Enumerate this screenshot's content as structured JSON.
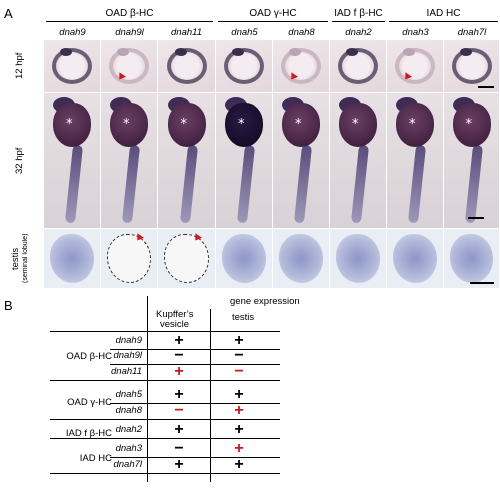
{
  "panel_a": {
    "letter": "A",
    "groups": [
      {
        "label": "OAD β-HC"
      },
      {
        "label": "OAD γ-HC"
      },
      {
        "label": "IAD f β-HC"
      },
      {
        "label": "IAD HC"
      }
    ],
    "genes": [
      "dnah9",
      "dnah9l",
      "dnah11",
      "dnah5",
      "dnah8",
      "dnah2",
      "dnah3",
      "dnah7l"
    ],
    "rows": [
      {
        "label": "12 hpf"
      },
      {
        "label": "32 hpf"
      },
      {
        "label": "testis",
        "sublabel": "(seminal lobule)"
      }
    ],
    "star": "*",
    "faint_12hpf": [
      false,
      true,
      false,
      false,
      true,
      false,
      true,
      false
    ],
    "dark_yolk_32hpf": [
      false,
      false,
      false,
      true,
      false,
      false,
      false,
      false
    ],
    "absent_testis": [
      false,
      true,
      true,
      false,
      false,
      false,
      false,
      false
    ],
    "colors": {
      "arrowhead": "#d6141c",
      "stain": "#3c2f4c"
    }
  },
  "panel_b": {
    "letter": "B",
    "header": {
      "title": "gene expression",
      "col1_line1": "Kupffer’s",
      "col1_line2": "vesicle",
      "col2": "testis"
    },
    "groups": [
      {
        "label": "OAD β-HC"
      },
      {
        "label": "OAD γ-HC"
      },
      {
        "label": "IAD f β-HC"
      },
      {
        "label": "IAD HC"
      }
    ],
    "rows": [
      {
        "gene": "dnah9",
        "kv": "+",
        "kv_red": false,
        "testis": "+",
        "testis_red": false
      },
      {
        "gene": "dnah9l",
        "kv": "−",
        "kv_red": false,
        "testis": "−",
        "testis_red": false
      },
      {
        "gene": "dnah11",
        "kv": "+",
        "kv_red": true,
        "testis": "−",
        "testis_red": true
      },
      {
        "gene": "dnah5",
        "kv": "+",
        "kv_red": false,
        "testis": "+",
        "testis_red": false
      },
      {
        "gene": "dnah8",
        "kv": "−",
        "kv_red": true,
        "testis": "+",
        "testis_red": true
      },
      {
        "gene": "dnah2",
        "kv": "+",
        "kv_red": false,
        "testis": "+",
        "testis_red": false
      },
      {
        "gene": "dnah3",
        "kv": "−",
        "kv_red": false,
        "testis": "+",
        "testis_red": true
      },
      {
        "gene": "dnah7l",
        "kv": "+",
        "kv_red": false,
        "testis": "+",
        "testis_red": false
      }
    ],
    "colors": {
      "red": "#d6141c",
      "black": "#000000"
    }
  }
}
